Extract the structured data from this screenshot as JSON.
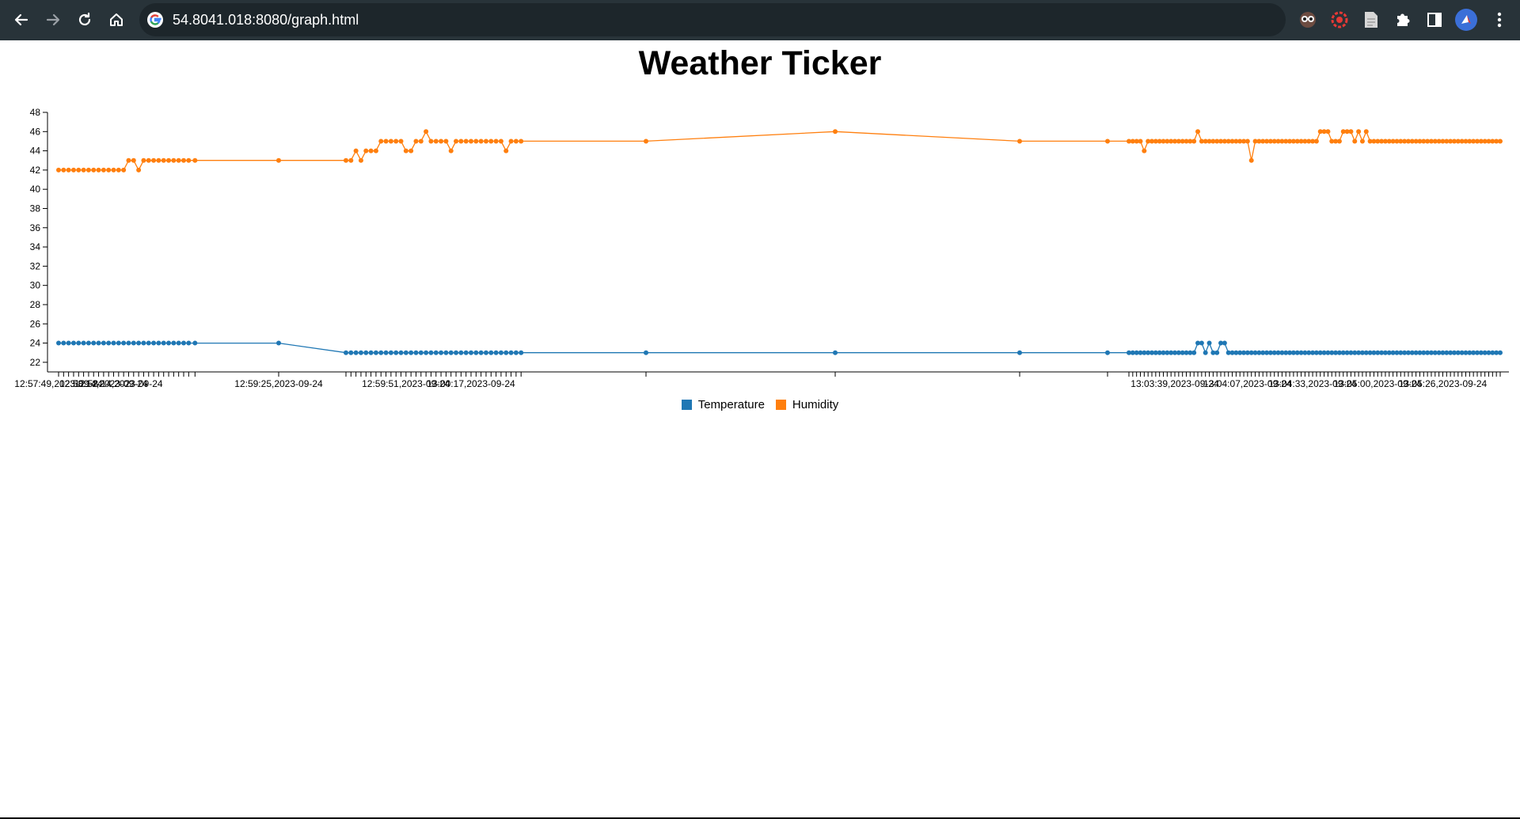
{
  "browser": {
    "url": "54.8041.018:8080/graph.html",
    "icons": [
      "back-arrow-icon",
      "forward-arrow-icon",
      "reload-icon",
      "home-icon",
      "google-g-icon",
      "owl-extension-icon",
      "red-circle-extension-icon",
      "document-icon",
      "puzzle-extensions-icon",
      "side-panel-icon",
      "profile-avatar-icon",
      "more-vert-icon"
    ],
    "colors": {
      "bar": "#283339",
      "omnibox": "#1d262b"
    }
  },
  "page": {
    "title": "Weather Ticker"
  },
  "chart_data": {
    "type": "line",
    "title": "Weather Ticker",
    "xlabel": "",
    "ylabel": "",
    "ylim": [
      21,
      48
    ],
    "yticks": [
      22,
      24,
      26,
      28,
      30,
      32,
      34,
      36,
      38,
      40,
      42,
      44,
      46,
      48
    ],
    "x_tick_labels": [
      {
        "label": "12:57:49,2023-09-24",
        "at_point": 0
      },
      {
        "label": "12:58:14,2023-09-24",
        "at_point": 9
      },
      {
        "label": "12:58:14,2023-09-24",
        "at_point": 12
      },
      {
        "label": "12:59:25,2023-09-24",
        "at_point": 28
      },
      {
        "label": "12:59:51,2023-09-24",
        "at_point": 41
      },
      {
        "label": "13:00:17,2023-09-24",
        "at_point": 54
      },
      {
        "label": "13:03:39,2023-09-24",
        "at_point": 81
      },
      {
        "label": "13:04:07,2023-09-24",
        "at_point": 100
      },
      {
        "label": "13:04:33,2023-09-24",
        "at_point": 117
      },
      {
        "label": "13:05:00,2023-09-24",
        "at_point": 134
      },
      {
        "label": "13:05:26,2023-09-24",
        "at_point": 151
      }
    ],
    "legend_position": "bottom-center",
    "grid": false,
    "series": [
      {
        "name": "Temperature",
        "color": "#1f77b4",
        "values": [
          24,
          24,
          24,
          24,
          24,
          24,
          24,
          24,
          24,
          24,
          24,
          24,
          24,
          24,
          24,
          24,
          24,
          24,
          24,
          24,
          24,
          24,
          24,
          24,
          24,
          24,
          24,
          24,
          24,
          23,
          23,
          23,
          23,
          23,
          23,
          23,
          23,
          23,
          23,
          23,
          23,
          23,
          23,
          23,
          23,
          23,
          23,
          23,
          23,
          23,
          23,
          23,
          23,
          23,
          23,
          23,
          23,
          23,
          23,
          23,
          23,
          23,
          23,
          23,
          23,
          23,
          23,
          23,
          23,
          23,
          23,
          23,
          23,
          23,
          23,
          23,
          23,
          23,
          23,
          23,
          23,
          23,
          23,
          23,
          23,
          23,
          23,
          24,
          24,
          23,
          24,
          23,
          23,
          24,
          24,
          23,
          23,
          23,
          23,
          23,
          23,
          23,
          23,
          23,
          23,
          23,
          23,
          23,
          23,
          23,
          23,
          23,
          23,
          23,
          23,
          23,
          23,
          23,
          23,
          23,
          23,
          23,
          23,
          23,
          23,
          23,
          23,
          23,
          23,
          23,
          23,
          23,
          23,
          23,
          23,
          23,
          23,
          23,
          23,
          23,
          23,
          23,
          23,
          23,
          23,
          23,
          23,
          23,
          23,
          23,
          23,
          23,
          23,
          23,
          23,
          23,
          23,
          23,
          23,
          23,
          23,
          23,
          23,
          23,
          23,
          23,
          23
        ]
      },
      {
        "name": "Humidity",
        "color": "#ff7f0e",
        "values": [
          42,
          42,
          42,
          42,
          42,
          42,
          42,
          42,
          42,
          42,
          42,
          42,
          42,
          42,
          43,
          43,
          42,
          43,
          43,
          43,
          43,
          43,
          43,
          43,
          43,
          43,
          43,
          43,
          43,
          43,
          43,
          44,
          43,
          44,
          44,
          44,
          45,
          45,
          45,
          45,
          45,
          44,
          44,
          45,
          45,
          46,
          45,
          45,
          45,
          45,
          44,
          45,
          45,
          45,
          45,
          45,
          45,
          45,
          45,
          45,
          45,
          44,
          45,
          45,
          45,
          45,
          46,
          45,
          45,
          45,
          45,
          45,
          45,
          44,
          45,
          45,
          45,
          45,
          45,
          45,
          45,
          45,
          45,
          45,
          45,
          45,
          45,
          46,
          45,
          45,
          45,
          45,
          45,
          45,
          45,
          45,
          45,
          45,
          45,
          45,
          45,
          43,
          45,
          45,
          45,
          45,
          45,
          45,
          45,
          45,
          45,
          45,
          45,
          45,
          45,
          45,
          45,
          45,
          45,
          46,
          46,
          46,
          45,
          45,
          45,
          46,
          46,
          46,
          45,
          46,
          45,
          46,
          45,
          45,
          45,
          45,
          45,
          45,
          45,
          45,
          45,
          45,
          45,
          45,
          45,
          45,
          45,
          45,
          45,
          45,
          45,
          45,
          45,
          45,
          45,
          45,
          45,
          45,
          45,
          45,
          45,
          45,
          45,
          45,
          45,
          45,
          45
        ]
      }
    ]
  }
}
